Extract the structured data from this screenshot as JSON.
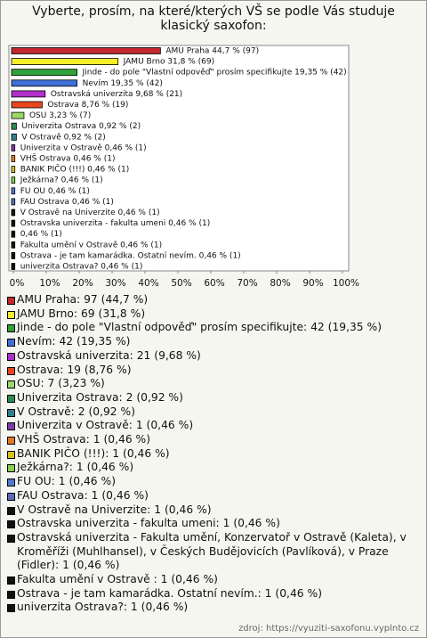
{
  "chart_data": {
    "type": "bar",
    "orientation": "horizontal",
    "title": "Vyberte, prosím, na které/kterých VŠ se podle Vás studuje klasický saxofon:",
    "values": [
      44.7,
      31.8,
      19.35,
      19.35,
      9.68,
      8.76,
      3.23,
      0.92,
      0.92,
      0.46,
      0.46,
      0.46,
      0.46,
      0.46,
      0.46,
      0.46,
      0.46,
      0.46,
      0.46,
      0.46,
      0.46
    ],
    "value_labels": [
      "AMU Praha 44,7 % (97)",
      "JAMU Brno 31,8 % (69)",
      "Jinde - do pole \"Vlastní odpověď\" prosím specifikujte 19,35 % (42)",
      "Nevím 19,35 % (42)",
      "Ostravská univerzita 9,68 % (21)",
      "Ostrava 8,76 % (19)",
      "OSU 3,23 % (7)",
      "Univerzita Ostrava 0,92 % (2)",
      "V Ostravě 0,92 % (2)",
      "Univerzita v Ostravě 0,46 % (1)",
      "VHŠ Ostrava 0,46 % (1)",
      "BANIK PIČO (!!!) 0,46 % (1)",
      "Ježkárna? 0,46 % (1)",
      "FU OU 0,46 % (1)",
      "FAU Ostrava 0,46 % (1)",
      "V Ostravě na Univerzite 0,46 % (1)",
      "Ostravska univerzita - fakulta umeni 0,46 % (1)",
      "0,46 % (1)",
      "Fakulta umění v Ostravě  0,46 % (1)",
      "Ostrava - je tam kamarádka. Ostatní nevím. 0,46 % (1)",
      "univerzita Ostrava? 0,46 % (1)"
    ],
    "legend": [
      "AMU Praha: 97 (44,7 %)",
      "JAMU Brno: 69 (31,8 %)",
      "Jinde - do pole \"Vlastní odpověď\" prosím specifikujte: 42 (19,35 %)",
      "Nevím: 42 (19,35 %)",
      "Ostravská univerzita: 21 (9,68 %)",
      "Ostrava: 19 (8,76 %)",
      "OSU: 7 (3,23 %)",
      "Univerzita Ostrava: 2 (0,92 %)",
      "V Ostravě: 2 (0,92 %)",
      "Univerzita v Ostravě: 1 (0,46 %)",
      "VHŠ Ostrava: 1 (0,46 %)",
      "BANIK PIČO (!!!): 1 (0,46 %)",
      "Ježkárna?: 1 (0,46 %)",
      "FU OU: 1 (0,46 %)",
      "FAU Ostrava: 1 (0,46 %)",
      "V Ostravě na Univerzite: 1 (0,46 %)",
      "Ostravska univerzita - fakulta umeni: 1 (0,46 %)",
      "Ostravská univerzita - Fakulta umění, Konzervatoř v Ostravě (Kaleta), v Kroměříži (Muhlhansel), v Českých Budějovicích (Pavlíková), v Praze (Fidler): 1 (0,46 %)",
      "Fakulta umění v Ostravě : 1 (0,46 %)",
      "Ostrava - je tam kamarádka. Ostatní nevím.: 1 (0,46 %)",
      "univerzita Ostrava?: 1 (0,46 %)"
    ],
    "colors": [
      "#c0282d",
      "#f5ee2a",
      "#2fa13a",
      "#3d6fd6",
      "#b02fc9",
      "#e8461e",
      "#9ad86a",
      "#2b8a4e",
      "#2f7f8a",
      "#7d3aa8",
      "#e07b1e",
      "#d9c21a",
      "#86d04a",
      "#4f7bd0",
      "#5a6bb5",
      "#111111",
      "#111111",
      "#111111",
      "#111111",
      "#111111",
      "#111111"
    ],
    "xlim": [
      0,
      100
    ],
    "xticks": [
      {
        "value": 0,
        "label": "0%"
      },
      {
        "value": 10,
        "label": "10%"
      },
      {
        "value": 20,
        "label": "20%"
      },
      {
        "value": 30,
        "label": "30%"
      },
      {
        "value": 40,
        "label": "40%"
      },
      {
        "value": 50,
        "label": "50%"
      },
      {
        "value": 60,
        "label": "60%"
      },
      {
        "value": 70,
        "label": "70%"
      },
      {
        "value": 80,
        "label": "80%"
      },
      {
        "value": 90,
        "label": "90%"
      },
      {
        "value": 100,
        "label": "100%"
      }
    ],
    "source": "zdroj: https://vyuziti-saxofonu.vyplnto.cz"
  }
}
